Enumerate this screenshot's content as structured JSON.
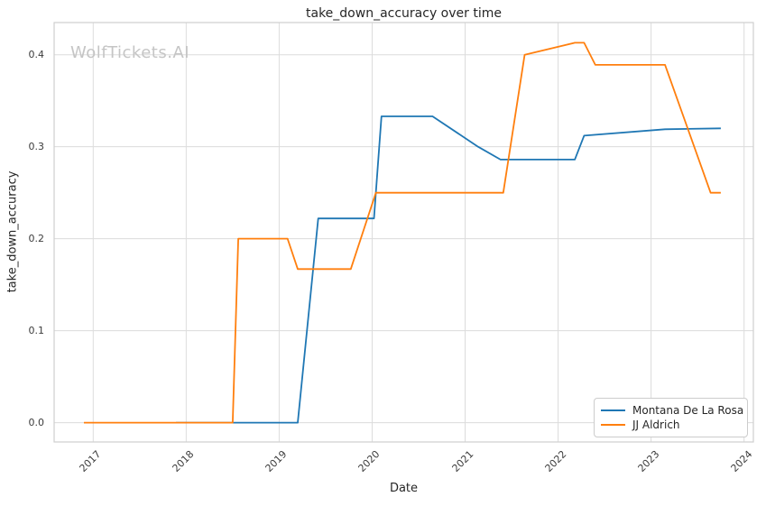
{
  "watermark": {
    "text": "WolfTickets.AI",
    "color": "#c5c5c5"
  },
  "chart_data": {
    "type": "line",
    "title": "take_down_accuracy over time",
    "xlabel": "Date",
    "ylabel": "take_down_accuracy",
    "grid": true,
    "legend_position": "lower right",
    "x_tick_labels": [
      "2017",
      "2018",
      "2019",
      "2020",
      "2021",
      "2022",
      "2023",
      "2024"
    ],
    "x_tick_values": [
      2017,
      2018,
      2019,
      2020,
      2021,
      2022,
      2023,
      2024
    ],
    "y_tick_labels": [
      "0.0",
      "0.1",
      "0.2",
      "0.3",
      "0.4"
    ],
    "y_tick_values": [
      0.0,
      0.1,
      0.2,
      0.3,
      0.4
    ],
    "x_range": [
      2016.58,
      2024.1
    ],
    "y_range": [
      -0.021,
      0.435
    ],
    "colors": {
      "grid": "#dcdcdc",
      "spine": "#cfcfcf"
    },
    "series": [
      {
        "name": "Montana De La Rosa",
        "color": "#1f77b4",
        "points": [
          [
            2017.89,
            0.0
          ],
          [
            2019.2,
            0.0
          ],
          [
            2019.42,
            0.222
          ],
          [
            2020.02,
            0.222
          ],
          [
            2020.1,
            0.333
          ],
          [
            2020.65,
            0.333
          ],
          [
            2021.14,
            0.3
          ],
          [
            2021.38,
            0.286
          ],
          [
            2022.18,
            0.286
          ],
          [
            2022.28,
            0.312
          ],
          [
            2023.15,
            0.319
          ],
          [
            2023.75,
            0.32
          ]
        ]
      },
      {
        "name": "JJ Aldrich",
        "color": "#ff7f0e",
        "points": [
          [
            2016.9,
            0.0
          ],
          [
            2018.5,
            0.0
          ],
          [
            2018.56,
            0.2
          ],
          [
            2019.09,
            0.2
          ],
          [
            2019.2,
            0.167
          ],
          [
            2019.77,
            0.167
          ],
          [
            2020.04,
            0.25
          ],
          [
            2021.41,
            0.25
          ],
          [
            2021.64,
            0.4
          ],
          [
            2022.18,
            0.413
          ],
          [
            2022.28,
            0.413
          ],
          [
            2022.4,
            0.389
          ],
          [
            2023.15,
            0.389
          ],
          [
            2023.64,
            0.25
          ],
          [
            2023.75,
            0.25
          ]
        ]
      }
    ]
  }
}
